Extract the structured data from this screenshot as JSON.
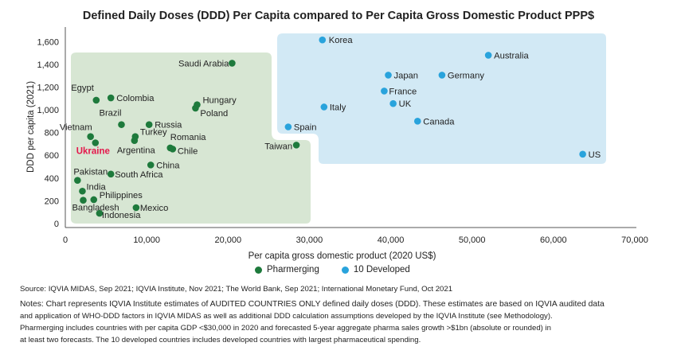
{
  "chart_data": {
    "type": "scatter",
    "title": "Defined Daily Doses (DDD) Per Capita compared to Per Capita Gross Domestic Product PPP$",
    "xlabel": "Per capita gross domestic product (2020 US$)",
    "ylabel": "DDD per capita (2021)",
    "xlim": [
      0,
      70000
    ],
    "ylim": [
      0,
      1700
    ],
    "xticks": [
      0,
      10000,
      20000,
      30000,
      40000,
      50000,
      60000,
      70000
    ],
    "xtick_labels": [
      "0",
      "10,000",
      "20,000",
      "30,000",
      "40,000",
      "50,000",
      "60,000",
      "70,000"
    ],
    "yticks": [
      0,
      200,
      400,
      600,
      800,
      1000,
      1200,
      1400,
      1600
    ],
    "ytick_labels": [
      "0",
      "200",
      "400",
      "600",
      "800",
      "1,000",
      "1,200",
      "1,400",
      "1,600"
    ],
    "series": [
      {
        "name": "Pharmerging",
        "color": "#1e7a3c",
        "points": [
          {
            "label": "Saudi Arabia",
            "x": 20500,
            "y": 1410
          },
          {
            "label": "Hungary",
            "x": 16200,
            "y": 1045
          },
          {
            "label": "Poland",
            "x": 16000,
            "y": 1015
          },
          {
            "label": "Egypt",
            "x": 3800,
            "y": 1085
          },
          {
            "label": "Colombia",
            "x": 5600,
            "y": 1105
          },
          {
            "label": "Brazil",
            "x": 6900,
            "y": 870
          },
          {
            "label": "Russia",
            "x": 10300,
            "y": 870
          },
          {
            "label": "Turkey",
            "x": 8600,
            "y": 765
          },
          {
            "label": "Argentina",
            "x": 8500,
            "y": 730
          },
          {
            "label": "Vietnam",
            "x": 3100,
            "y": 765
          },
          {
            "label": "Ukraine",
            "x": 3700,
            "y": 710,
            "highlight": true
          },
          {
            "label": "Romania",
            "x": 12900,
            "y": 665
          },
          {
            "label": "Chile",
            "x": 13200,
            "y": 655
          },
          {
            "label": "Taiwan",
            "x": 28400,
            "y": 690
          },
          {
            "label": "China",
            "x": 10500,
            "y": 515
          },
          {
            "label": "Pakistan",
            "x": 1500,
            "y": 380
          },
          {
            "label": "South Africa",
            "x": 5600,
            "y": 435
          },
          {
            "label": "India",
            "x": 2100,
            "y": 285
          },
          {
            "label": "Philippines",
            "x": 3500,
            "y": 210
          },
          {
            "label": "Bangladesh",
            "x": 2200,
            "y": 205
          },
          {
            "label": "Mexico",
            "x": 8700,
            "y": 140
          },
          {
            "label": "Indonesia",
            "x": 4200,
            "y": 90
          }
        ]
      },
      {
        "name": "10 Developed",
        "color": "#29a3dc",
        "points": [
          {
            "label": "Korea",
            "x": 31600,
            "y": 1615
          },
          {
            "label": "Australia",
            "x": 52000,
            "y": 1480
          },
          {
            "label": "Japan",
            "x": 39700,
            "y": 1305
          },
          {
            "label": "Germany",
            "x": 46300,
            "y": 1305
          },
          {
            "label": "France",
            "x": 39200,
            "y": 1165
          },
          {
            "label": "UK",
            "x": 40300,
            "y": 1055
          },
          {
            "label": "Italy",
            "x": 31800,
            "y": 1025
          },
          {
            "label": "Canada",
            "x": 43300,
            "y": 900
          },
          {
            "label": "Spain",
            "x": 27400,
            "y": 850
          },
          {
            "label": "US",
            "x": 63600,
            "y": 610
          }
        ]
      }
    ]
  },
  "legend": {
    "pharmerging": "Pharmerging",
    "developed": "10 Developed"
  },
  "source": "Source: IQVIA MIDAS, Sep 2021; IQVIA Institute, Nov 2021; The World Bank, Sep 2021; International Monetary Fund, Oct 2021",
  "notes": {
    "line1": "Notes: Chart represents IQVIA Institute estimates of AUDITED COUNTRIES ONLY defined daily doses (DDD). These estimates are based on IQVIA audited data",
    "line2": "and application of WHO-DDD factors in IQVIA MIDAS as well as additional DDD calculation assumptions developed by the IQVIA Institute (see Methodology).",
    "line3": "Pharmerging includes countries with per capita GDP <$30,000 in 2020 and forecasted 5-year aggregate pharma sales growth >$1bn (absolute or rounded) in",
    "line4": "at least two forecasts. The 10 developed countries includes developed countries with largest pharmaceutical spending."
  }
}
